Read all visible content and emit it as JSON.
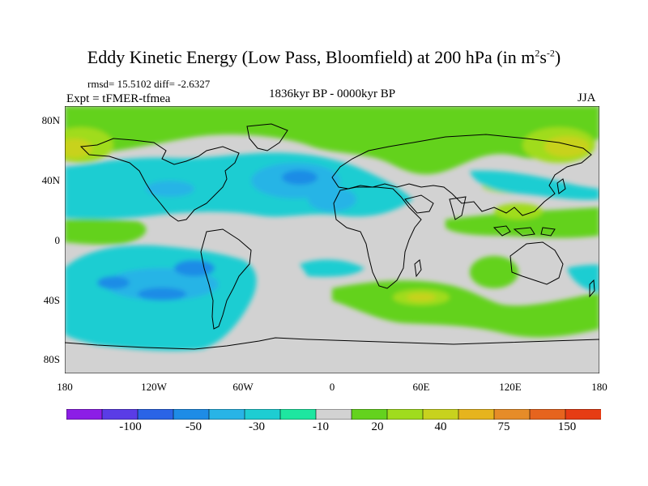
{
  "title": {
    "main": "Eddy Kinetic Energy (Low Pass, Bloomfield) at 200 hPa (in m",
    "unit_sup1": "2",
    "unit_s": "s",
    "unit_sup2": "-2",
    "close": ")"
  },
  "stats": "rmsd= 15.5102 diff= -2.6327",
  "expt": "Expt = tFMER-tfmea",
  "period": "1836kyr BP - 0000kyr BP",
  "season": "JJA",
  "lat_labels": [
    "80N",
    "40N",
    "0",
    "40S",
    "80S"
  ],
  "lon_labels": [
    "180",
    "120W",
    "60W",
    "0",
    "60E",
    "120E",
    "180"
  ],
  "colorbar": {
    "colors": [
      "#8c1ee6",
      "#5a3ce6",
      "#2a64e6",
      "#1e8ce6",
      "#28b4e6",
      "#1ecdd2",
      "#1ee6a0",
      "#d2d2d2",
      "#64d21e",
      "#a0dc1e",
      "#c8d21e",
      "#e6b41e",
      "#e68c28",
      "#e6641e",
      "#e63c14"
    ],
    "labels": [
      "-100",
      "-50",
      "-30",
      "-10",
      "20",
      "40",
      "75",
      "150"
    ]
  }
}
